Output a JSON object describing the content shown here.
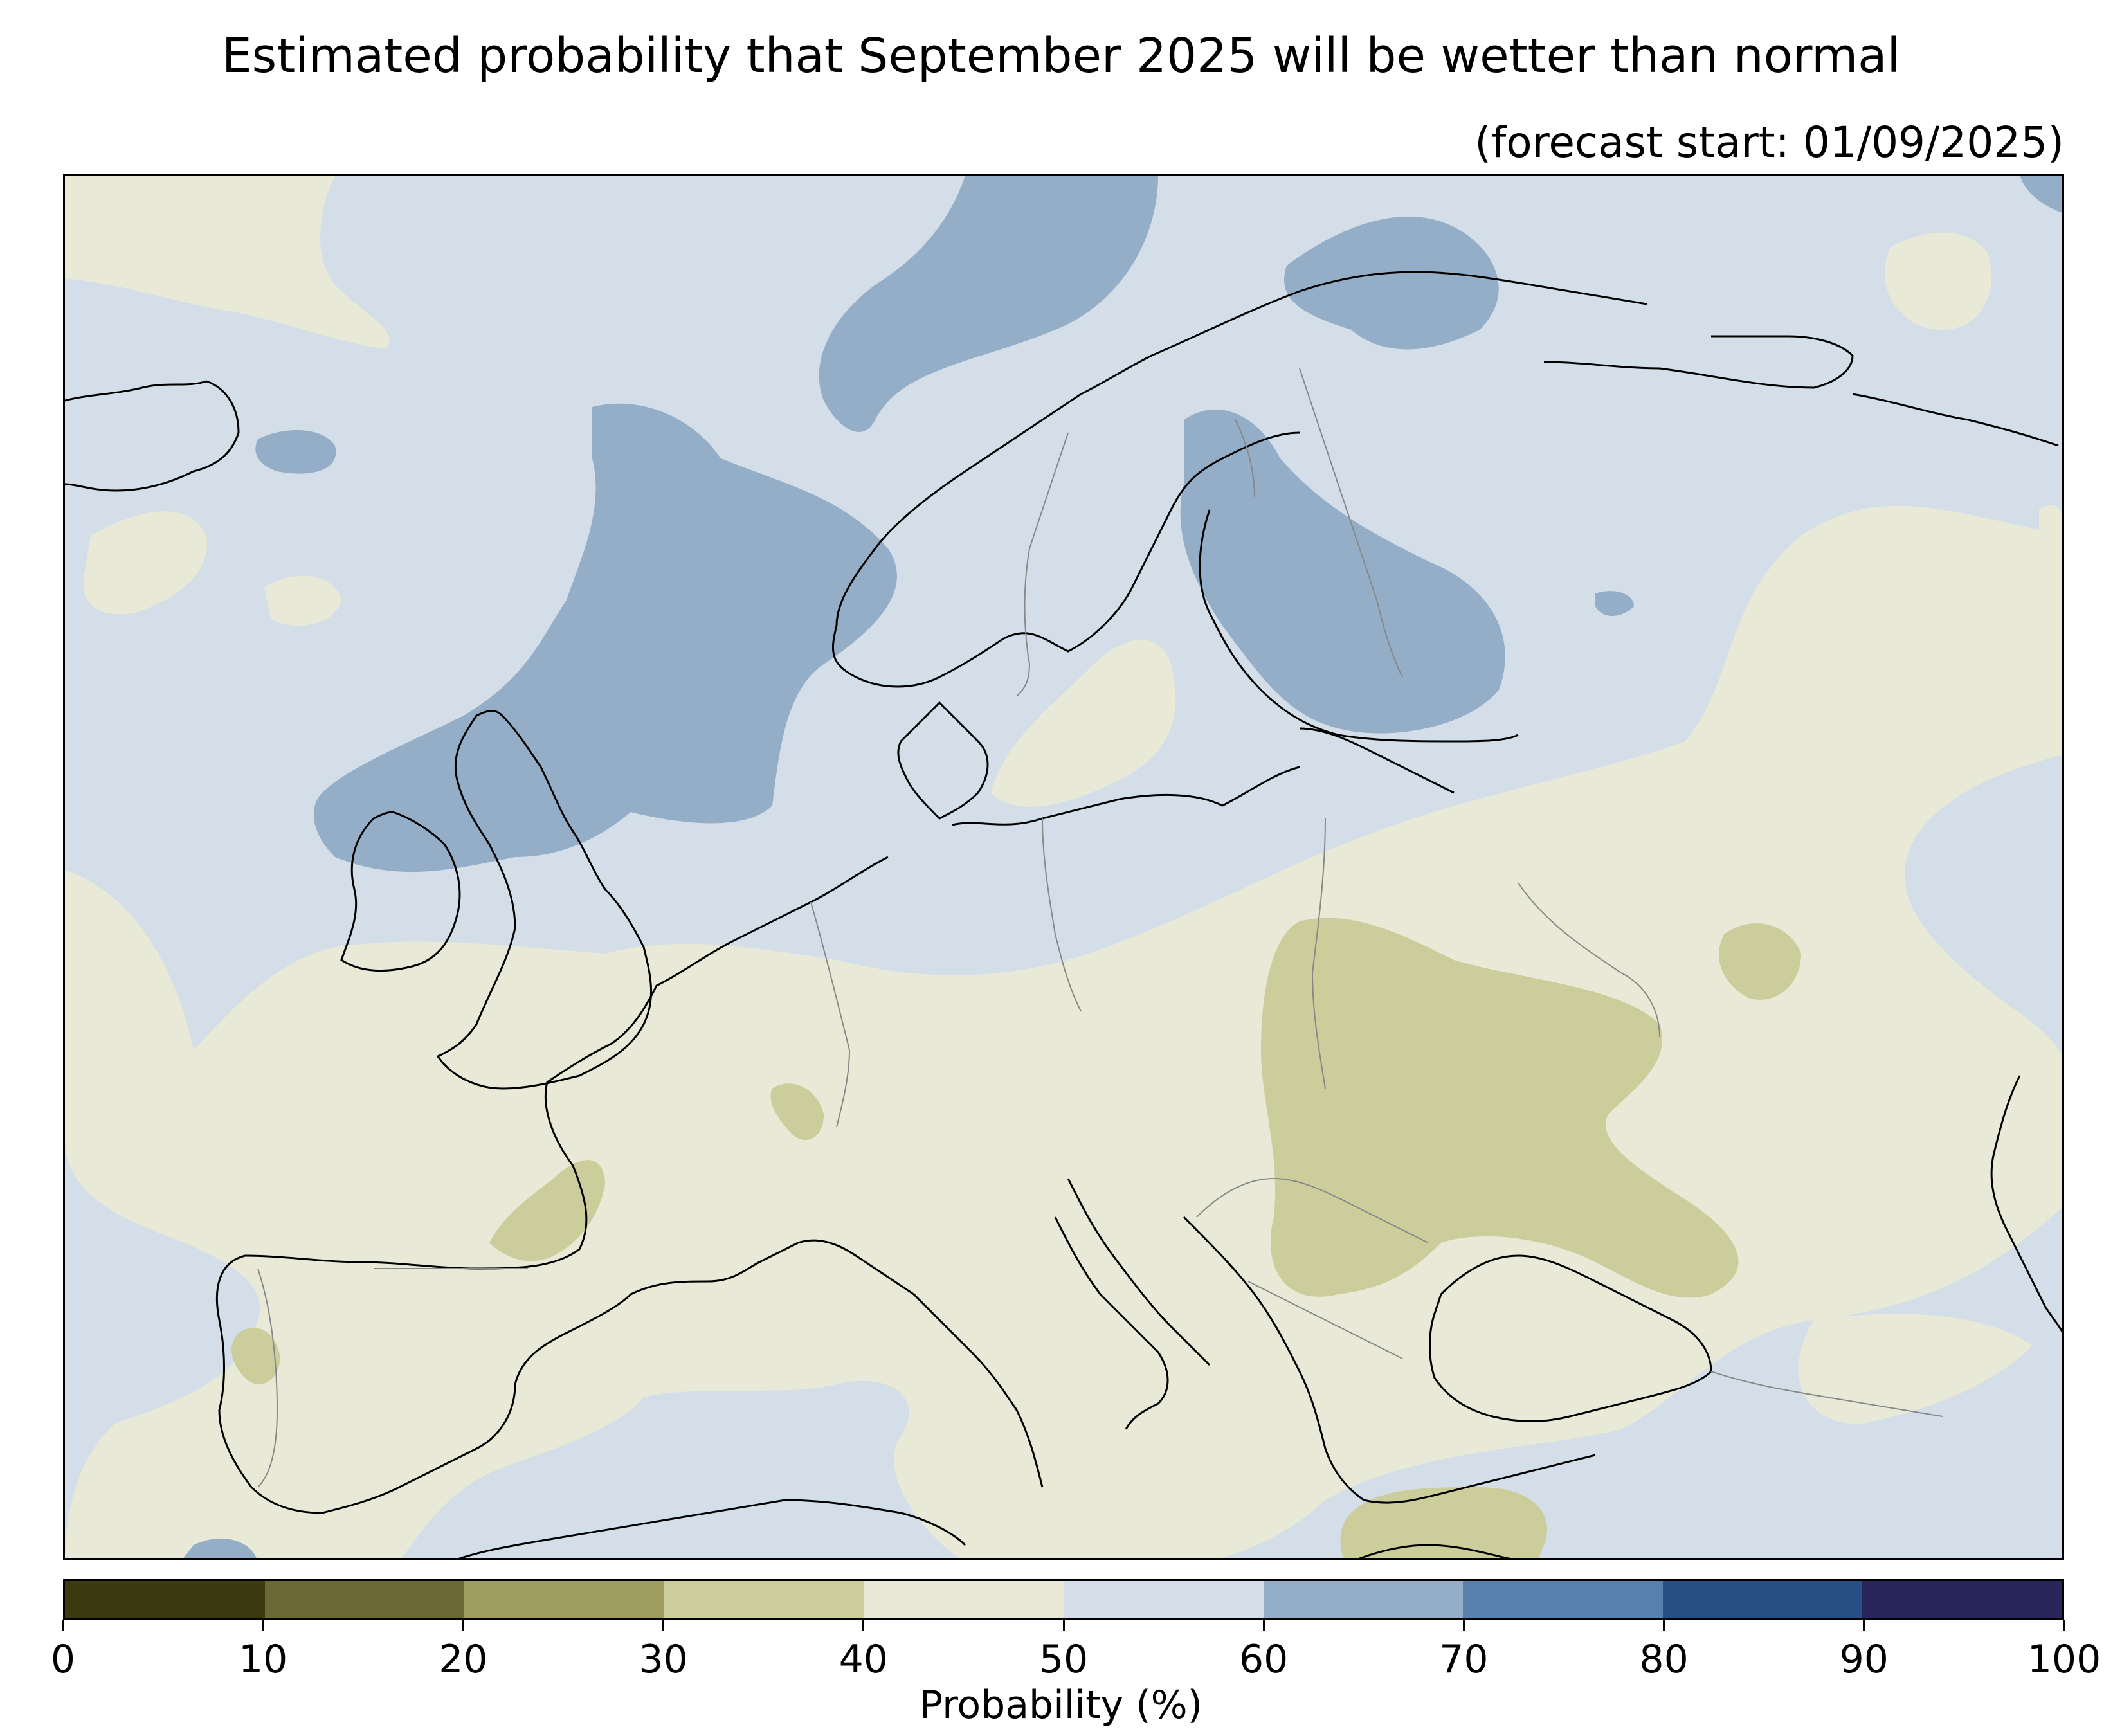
{
  "title": "Estimated probability that September 2025 will be wetter than normal",
  "subtitle": "(forecast start: 01/09/2025)",
  "colorbar": {
    "label": "Probability (%)",
    "ticks": [
      "0",
      "10",
      "20",
      "30",
      "40",
      "50",
      "60",
      "70",
      "80",
      "90",
      "100"
    ],
    "bins": [
      {
        "range": "0-10",
        "color": "#3b3a10"
      },
      {
        "range": "10-20",
        "color": "#6b6a35"
      },
      {
        "range": "20-30",
        "color": "#9f9d5e"
      },
      {
        "range": "30-40",
        "color": "#cbce9b"
      },
      {
        "range": "40-50",
        "color": "#e8e9d7"
      },
      {
        "range": "50-60",
        "color": "#d4dee8"
      },
      {
        "range": "60-70",
        "color": "#94aec8"
      },
      {
        "range": "70-80",
        "color": "#5680ad"
      },
      {
        "range": "80-90",
        "color": "#264f85"
      },
      {
        "range": "90-100",
        "color": "#272559"
      }
    ]
  },
  "map": {
    "region": "Europe",
    "background_color": "#d4dee8",
    "coastline_color": "#000000",
    "border_color": "#888888"
  }
}
